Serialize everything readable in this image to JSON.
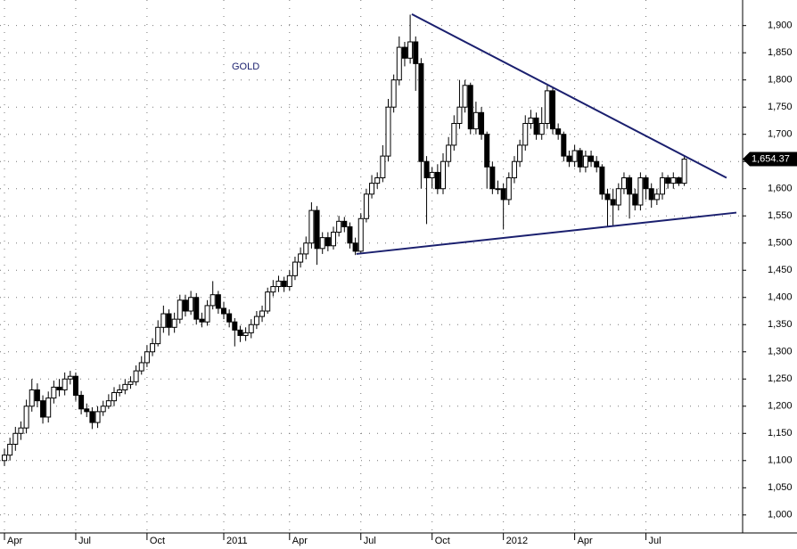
{
  "chart_data": {
    "type": "candlestick",
    "label": "GOLD",
    "last_value_label": "1,654.37",
    "categories": [
      "Apr",
      null,
      null,
      null,
      null,
      null,
      null,
      null,
      null,
      null,
      null,
      null,
      null,
      "Jul",
      null,
      null,
      null,
      null,
      null,
      null,
      null,
      null,
      null,
      null,
      null,
      null,
      "Oct",
      null,
      null,
      null,
      null,
      null,
      null,
      null,
      null,
      null,
      null,
      null,
      null,
      null,
      "2011",
      null,
      null,
      null,
      null,
      null,
      null,
      null,
      null,
      null,
      null,
      null,
      "Apr",
      null,
      null,
      null,
      null,
      null,
      null,
      null,
      null,
      null,
      null,
      null,
      null,
      "Jul",
      null,
      null,
      null,
      null,
      null,
      null,
      null,
      null,
      null,
      null,
      null,
      null,
      "Oct",
      null,
      null,
      null,
      null,
      null,
      null,
      null,
      null,
      null,
      null,
      null,
      null,
      "2012",
      null,
      null,
      null,
      null,
      null,
      null,
      null,
      null,
      null,
      null,
      null,
      null,
      "Apr",
      null,
      null,
      null,
      null,
      null,
      null,
      null,
      null,
      null,
      null,
      null,
      null,
      "Jul",
      null,
      null,
      null,
      null,
      null,
      null,
      null
    ],
    "open": [
      1100,
      1110,
      1130,
      1150,
      1160,
      1200,
      1230,
      1210,
      1180,
      1215,
      1235,
      1230,
      1250,
      1255,
      1220,
      1195,
      1190,
      1170,
      1190,
      1200,
      1210,
      1225,
      1230,
      1240,
      1245,
      1265,
      1280,
      1300,
      1315,
      1345,
      1370,
      1345,
      1360,
      1395,
      1375,
      1400,
      1360,
      1355,
      1385,
      1405,
      1380,
      1370,
      1355,
      1340,
      1330,
      1335,
      1350,
      1365,
      1375,
      1410,
      1420,
      1430,
      1420,
      1440,
      1465,
      1480,
      1500,
      1560,
      1490,
      1510,
      1495,
      1520,
      1540,
      1530,
      1500,
      1485,
      1545,
      1590,
      1610,
      1620,
      1660,
      1750,
      1800,
      1860,
      1840,
      1870,
      1830,
      1650,
      1620,
      1630,
      1600,
      1650,
      1680,
      1720,
      1750,
      1790,
      1710,
      1740,
      1700,
      1640,
      1600,
      1600,
      1580,
      1620,
      1650,
      1680,
      1720,
      1730,
      1700,
      1720,
      1780,
      1710,
      1700,
      1660,
      1650,
      1670,
      1640,
      1660,
      1650,
      1640,
      1590,
      1580,
      1570,
      1600,
      1620,
      1590,
      1570,
      1620,
      1600,
      1580,
      1590,
      1620,
      1610,
      1620,
      1610
    ],
    "high": [
      1122,
      1142,
      1162,
      1172,
      1212,
      1250,
      1242,
      1220,
      1227,
      1247,
      1250,
      1262,
      1265,
      1262,
      1228,
      1205,
      1198,
      1200,
      1210,
      1222,
      1235,
      1240,
      1250,
      1255,
      1275,
      1292,
      1312,
      1325,
      1358,
      1385,
      1378,
      1372,
      1405,
      1405,
      1412,
      1408,
      1372,
      1395,
      1430,
      1412,
      1392,
      1378,
      1362,
      1348,
      1345,
      1360,
      1375,
      1385,
      1418,
      1432,
      1440,
      1438,
      1450,
      1475,
      1492,
      1512,
      1575,
      1568,
      1520,
      1520,
      1530,
      1550,
      1548,
      1538,
      1510,
      1555,
      1600,
      1625,
      1630,
      1680,
      1765,
      1810,
      1880,
      1870,
      1920,
      1880,
      1840,
      1660,
      1640,
      1645,
      1665,
      1695,
      1735,
      1800,
      1800,
      1795,
      1760,
      1750,
      1705,
      1650,
      1615,
      1610,
      1630,
      1660,
      1690,
      1735,
      1745,
      1740,
      1750,
      1790,
      1785,
      1720,
      1705,
      1670,
      1680,
      1675,
      1670,
      1670,
      1660,
      1645,
      1600,
      1600,
      1610,
      1630,
      1625,
      1600,
      1630,
      1625,
      1610,
      1600,
      1630,
      1625,
      1630,
      1622,
      1660
    ],
    "low": [
      1090,
      1100,
      1118,
      1138,
      1150,
      1190,
      1198,
      1168,
      1170,
      1205,
      1218,
      1220,
      1240,
      1210,
      1185,
      1180,
      1158,
      1160,
      1182,
      1195,
      1200,
      1218,
      1222,
      1232,
      1238,
      1258,
      1272,
      1292,
      1310,
      1335,
      1330,
      1335,
      1352,
      1365,
      1368,
      1350,
      1345,
      1348,
      1378,
      1370,
      1360,
      1345,
      1310,
      1318,
      1320,
      1325,
      1342,
      1355,
      1370,
      1402,
      1410,
      1410,
      1412,
      1432,
      1455,
      1470,
      1490,
      1460,
      1480,
      1485,
      1488,
      1512,
      1520,
      1490,
      1478,
      1480,
      1538,
      1582,
      1600,
      1612,
      1650,
      1740,
      1790,
      1825,
      1830,
      1780,
      1600,
      1535,
      1600,
      1590,
      1590,
      1640,
      1670,
      1710,
      1740,
      1700,
      1700,
      1690,
      1600,
      1590,
      1590,
      1525,
      1570,
      1610,
      1640,
      1670,
      1710,
      1690,
      1690,
      1710,
      1700,
      1690,
      1650,
      1640,
      1640,
      1630,
      1630,
      1640,
      1630,
      1580,
      1530,
      1530,
      1560,
      1590,
      1545,
      1560,
      1560,
      1580,
      1565,
      1570,
      1580,
      1600,
      1600,
      1605,
      1605
    ],
    "close": [
      1110,
      1130,
      1150,
      1160,
      1200,
      1230,
      1210,
      1180,
      1215,
      1235,
      1230,
      1250,
      1255,
      1220,
      1195,
      1190,
      1170,
      1190,
      1200,
      1210,
      1225,
      1230,
      1240,
      1245,
      1265,
      1280,
      1300,
      1315,
      1345,
      1370,
      1345,
      1360,
      1395,
      1375,
      1400,
      1360,
      1355,
      1385,
      1405,
      1380,
      1370,
      1355,
      1340,
      1330,
      1335,
      1350,
      1365,
      1375,
      1410,
      1420,
      1430,
      1420,
      1440,
      1465,
      1480,
      1500,
      1560,
      1490,
      1510,
      1495,
      1520,
      1540,
      1530,
      1500,
      1485,
      1545,
      1590,
      1610,
      1620,
      1660,
      1750,
      1800,
      1860,
      1840,
      1870,
      1830,
      1650,
      1620,
      1630,
      1600,
      1650,
      1680,
      1720,
      1750,
      1790,
      1710,
      1740,
      1700,
      1640,
      1600,
      1600,
      1580,
      1620,
      1650,
      1680,
      1720,
      1730,
      1700,
      1720,
      1780,
      1710,
      1700,
      1660,
      1650,
      1670,
      1640,
      1660,
      1650,
      1640,
      1590,
      1580,
      1570,
      1600,
      1620,
      1590,
      1570,
      1620,
      1600,
      1580,
      1590,
      1620,
      1610,
      1620,
      1610,
      1654.37
    ],
    "up_color": "#ffffff",
    "down_color": "#000000",
    "trend_color": "#1a1f6e",
    "trendlines": [
      {
        "x": [
          74.3,
          131.7
        ],
        "y": [
          1921,
          1620
        ]
      },
      {
        "x": [
          64.2,
          133.5
        ],
        "y": [
          1480,
          1556
        ]
      }
    ],
    "ylim": [
      980,
      1947
    ],
    "yticks": [
      {
        "value": 1000,
        "label": "1,000"
      },
      {
        "value": 1050,
        "label": "1,050"
      },
      {
        "value": 1100,
        "label": "1,100"
      },
      {
        "value": 1150,
        "label": "1,150"
      },
      {
        "value": 1200,
        "label": "1,200"
      },
      {
        "value": 1250,
        "label": "1,250"
      },
      {
        "value": 1300,
        "label": "1,300"
      },
      {
        "value": 1350,
        "label": "1,350"
      },
      {
        "value": 1400,
        "label": "1,400"
      },
      {
        "value": 1450,
        "label": "1,450"
      },
      {
        "value": 1500,
        "label": "1,500"
      },
      {
        "value": 1550,
        "label": "1,550"
      },
      {
        "value": 1600,
        "label": "1,600"
      },
      {
        "value": 1650,
        "label": "1,650"
      },
      {
        "value": 1700,
        "label": "1,700"
      },
      {
        "value": 1750,
        "label": "1,750"
      },
      {
        "value": 1800,
        "label": "1,800"
      },
      {
        "value": 1850,
        "label": "1,850"
      },
      {
        "value": 1900,
        "label": "1,900"
      }
    ],
    "grid": true
  }
}
